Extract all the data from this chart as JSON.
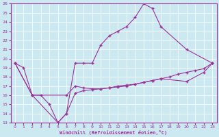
{
  "xlabel": "Windchill (Refroidissement éolien,°C)",
  "xlim": [
    -0.5,
    23.5
  ],
  "ylim": [
    13,
    26
  ],
  "xticks": [
    0,
    1,
    2,
    3,
    4,
    5,
    6,
    7,
    8,
    9,
    10,
    11,
    12,
    13,
    14,
    15,
    16,
    17,
    18,
    19,
    20,
    21,
    22,
    23
  ],
  "yticks": [
    13,
    14,
    15,
    16,
    17,
    18,
    19,
    20,
    21,
    22,
    23,
    24,
    25,
    26
  ],
  "bg_color": "#cce8f0",
  "grid_color": "#ffffff",
  "line_color": "#993399",
  "line1_x": [
    0,
    1,
    2,
    3,
    4,
    5,
    6,
    7,
    8,
    9,
    10,
    11,
    12,
    13,
    14,
    15,
    16,
    17,
    20,
    23
  ],
  "line1_y": [
    19.5,
    19.0,
    16.0,
    16.0,
    15.0,
    13.0,
    14.0,
    19.5,
    19.5,
    19.5,
    21.5,
    22.5,
    23.0,
    23.5,
    24.5,
    26.0,
    25.5,
    23.5,
    21.0,
    19.5
  ],
  "line2_x": [
    0,
    2,
    6,
    7,
    8,
    9,
    10,
    11,
    12,
    13,
    14,
    15,
    16,
    17,
    18,
    19,
    20,
    21,
    22,
    23
  ],
  "line2_y": [
    19.5,
    16.0,
    16.0,
    17.0,
    16.8,
    16.7,
    16.7,
    16.8,
    17.0,
    17.1,
    17.2,
    17.4,
    17.6,
    17.8,
    18.0,
    18.3,
    18.5,
    18.7,
    18.9,
    19.5
  ],
  "line3_x": [
    0,
    2,
    5,
    6,
    7,
    8,
    9,
    10,
    11,
    12,
    13,
    14,
    15,
    16,
    17,
    20,
    22,
    23
  ],
  "line3_y": [
    19.5,
    16.0,
    13.0,
    14.0,
    16.2,
    16.5,
    16.6,
    16.7,
    16.8,
    16.9,
    17.0,
    17.2,
    17.4,
    17.6,
    17.8,
    17.5,
    18.5,
    19.5
  ]
}
